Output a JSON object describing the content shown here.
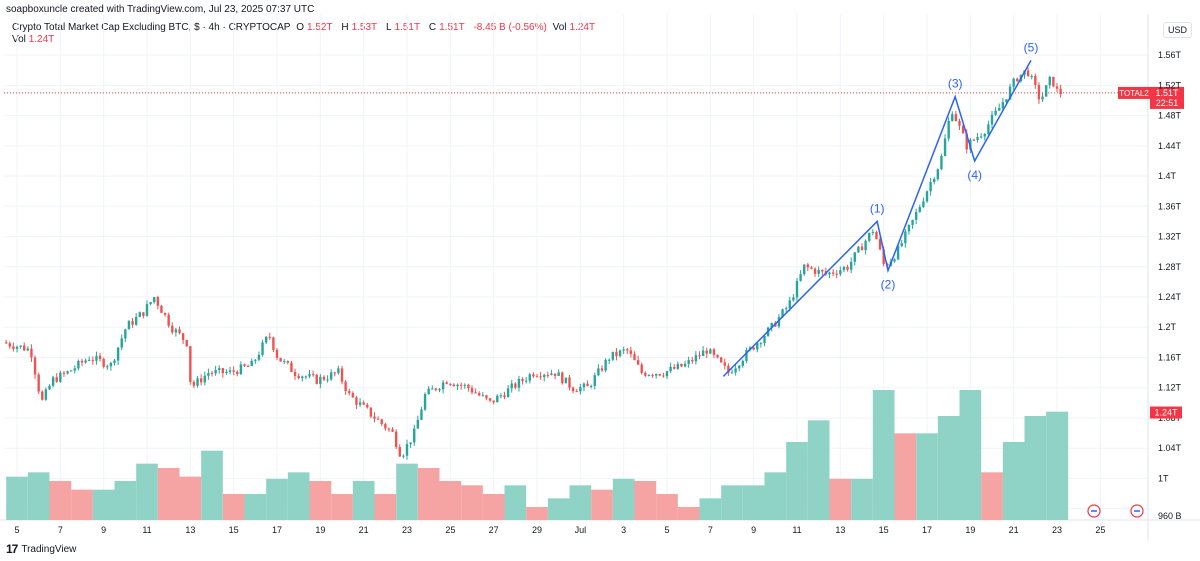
{
  "header": {
    "credit": "soapboxuncle created with TradingView.com, Jul 23, 2025 07:37 UTC"
  },
  "legend": {
    "title": "Crypto Total Market Cap Excluding BTC, $ · 4h · CRYPTOCAP",
    "open_label": "O",
    "open_value": "1.52T",
    "high_label": "H",
    "high_value": "1.53T",
    "low_label": "L",
    "low_value": "1.51T",
    "close_label": "C",
    "close_value": "1.51T",
    "change": "-8.45 B (-0.56%)",
    "vol_label": "Vol",
    "vol_value": "1.24T",
    "vol_row_label": "Vol",
    "vol_row_value": "1.24T"
  },
  "currency": "USD",
  "footer": {
    "brand": "TradingView"
  },
  "colors": {
    "up": "#26a69a",
    "down": "#ef5350",
    "vol_up": "#8fd3c6",
    "vol_down": "#f5a3a3",
    "wave": "#2962ff",
    "label_bg": "#f23645"
  },
  "chart_data": {
    "type": "candlestick",
    "title": "Crypto Total Market Cap Excluding BTC, $ · 4h · CRYPTOCAP",
    "y_ticks": [
      "1.56T",
      "1.52T",
      "1.48T",
      "1.44T",
      "1.4T",
      "1.36T",
      "1.32T",
      "1.28T",
      "1.24T",
      "1.2T",
      "1.16T",
      "1.12T",
      "1.08T",
      "1.04T",
      "1T",
      "960 B"
    ],
    "y_tick_values": [
      1.56,
      1.52,
      1.48,
      1.44,
      1.4,
      1.36,
      1.32,
      1.28,
      1.24,
      1.2,
      1.16,
      1.12,
      1.08,
      1.04,
      1.0,
      0.96
    ],
    "x_ticks": [
      "5",
      "7",
      "9",
      "11",
      "13",
      "15",
      "17",
      "19",
      "21",
      "23",
      "25",
      "27",
      "29",
      "Jul",
      "3",
      "5",
      "7",
      "9",
      "11",
      "13",
      "15",
      "17",
      "19",
      "21",
      "23",
      "25"
    ],
    "x_tick_days": [
      5,
      7,
      9,
      11,
      13,
      15,
      17,
      19,
      21,
      23,
      25,
      27,
      29,
      31,
      33,
      35,
      37,
      39,
      41,
      43,
      45,
      47,
      49,
      51,
      53,
      55
    ],
    "x_range_days": [
      4.4,
      57.2
    ],
    "y_range": [
      0.945,
      1.58
    ],
    "last_price_label": "TOTAL2",
    "last_price": "1.51T",
    "last_price_value": 1.51,
    "countdown": "22:51",
    "volume_label": "1.24T",
    "price_path": [
      [
        4.5,
        1.18
      ],
      [
        5.2,
        1.175
      ],
      [
        5.8,
        1.17
      ],
      [
        6.3,
        1.1
      ],
      [
        6.8,
        1.13
      ],
      [
        7.5,
        1.14
      ],
      [
        8.5,
        1.16
      ],
      [
        9.5,
        1.15
      ],
      [
        10.2,
        1.2
      ],
      [
        11.0,
        1.22
      ],
      [
        11.5,
        1.24
      ],
      [
        12.3,
        1.2
      ],
      [
        13.0,
        1.18
      ],
      [
        13.2,
        1.12
      ],
      [
        14.0,
        1.14
      ],
      [
        15.0,
        1.14
      ],
      [
        16.0,
        1.15
      ],
      [
        16.8,
        1.19
      ],
      [
        17.2,
        1.16
      ],
      [
        18.0,
        1.14
      ],
      [
        19.0,
        1.13
      ],
      [
        20.0,
        1.14
      ],
      [
        20.5,
        1.11
      ],
      [
        21.3,
        1.09
      ],
      [
        22.5,
        1.06
      ],
      [
        22.9,
        1.03
      ],
      [
        23.5,
        1.06
      ],
      [
        24.0,
        1.11
      ],
      [
        25.0,
        1.13
      ],
      [
        26.0,
        1.12
      ],
      [
        27.0,
        1.1
      ],
      [
        28.0,
        1.12
      ],
      [
        29.0,
        1.14
      ],
      [
        30.0,
        1.14
      ],
      [
        30.8,
        1.12
      ],
      [
        31.5,
        1.12
      ],
      [
        32.5,
        1.16
      ],
      [
        33.3,
        1.17
      ],
      [
        34.0,
        1.14
      ],
      [
        35.0,
        1.14
      ],
      [
        36.0,
        1.15
      ],
      [
        37.0,
        1.17
      ],
      [
        38.0,
        1.14
      ],
      [
        39.0,
        1.17
      ],
      [
        40.0,
        1.2
      ],
      [
        40.8,
        1.23
      ],
      [
        41.5,
        1.28
      ],
      [
        42.5,
        1.27
      ],
      [
        43.5,
        1.28
      ],
      [
        44.7,
        1.33
      ],
      [
        45.2,
        1.28
      ],
      [
        45.8,
        1.3
      ],
      [
        46.5,
        1.34
      ],
      [
        47.3,
        1.39
      ],
      [
        47.8,
        1.42
      ],
      [
        48.3,
        1.49
      ],
      [
        49.0,
        1.44
      ],
      [
        49.8,
        1.46
      ],
      [
        50.5,
        1.49
      ],
      [
        51.3,
        1.53
      ],
      [
        51.8,
        1.54
      ],
      [
        52.4,
        1.5
      ],
      [
        52.9,
        1.53
      ],
      [
        53.2,
        1.51
      ]
    ],
    "volume_bars": [
      [
        4.5,
        1.0
      ],
      [
        5.5,
        1.1
      ],
      [
        6.5,
        0.9
      ],
      [
        7.5,
        0.7
      ],
      [
        8.5,
        0.7
      ],
      [
        9.5,
        0.9
      ],
      [
        10.5,
        1.3
      ],
      [
        11.5,
        1.2
      ],
      [
        12.5,
        1.0
      ],
      [
        13.5,
        1.6
      ],
      [
        14.5,
        0.6
      ],
      [
        15.5,
        0.6
      ],
      [
        16.5,
        0.95
      ],
      [
        17.5,
        1.1
      ],
      [
        18.5,
        0.9
      ],
      [
        19.5,
        0.6
      ],
      [
        20.5,
        0.9
      ],
      [
        21.5,
        0.6
      ],
      [
        22.5,
        1.3
      ],
      [
        23.5,
        1.2
      ],
      [
        24.5,
        0.9
      ],
      [
        25.5,
        0.8
      ],
      [
        26.5,
        0.6
      ],
      [
        27.5,
        0.8
      ],
      [
        28.5,
        0.3
      ],
      [
        29.5,
        0.5
      ],
      [
        30.5,
        0.8
      ],
      [
        31.5,
        0.7
      ],
      [
        32.5,
        0.95
      ],
      [
        33.5,
        0.9
      ],
      [
        34.5,
        0.6
      ],
      [
        35.5,
        0.3
      ],
      [
        36.5,
        0.5
      ],
      [
        37.5,
        0.8
      ],
      [
        38.5,
        0.8
      ],
      [
        39.5,
        1.1
      ],
      [
        40.5,
        1.8
      ],
      [
        41.5,
        2.3
      ],
      [
        42.5,
        0.95
      ],
      [
        43.5,
        0.95
      ],
      [
        44.5,
        3.0
      ],
      [
        45.5,
        2.0
      ],
      [
        46.5,
        2.0
      ],
      [
        47.5,
        2.4
      ],
      [
        48.5,
        3.0
      ],
      [
        49.5,
        1.1
      ],
      [
        50.5,
        1.8
      ],
      [
        51.5,
        2.4
      ],
      [
        52.5,
        2.5
      ]
    ],
    "waves": [
      {
        "label": "(1)",
        "day": 44.7,
        "value": 1.34,
        "label_pos": "above"
      },
      {
        "label": "(2)",
        "day": 45.2,
        "value": 1.275,
        "label_pos": "below"
      },
      {
        "label": "(3)",
        "day": 48.3,
        "value": 1.505,
        "label_pos": "above"
      },
      {
        "label": "(4)",
        "day": 49.2,
        "value": 1.42,
        "label_pos": "below"
      },
      {
        "label": "(5)",
        "day": 51.8,
        "value": 1.553,
        "label_pos": "above"
      }
    ],
    "wave_start": {
      "day": 37.6,
      "value": 1.135
    }
  }
}
